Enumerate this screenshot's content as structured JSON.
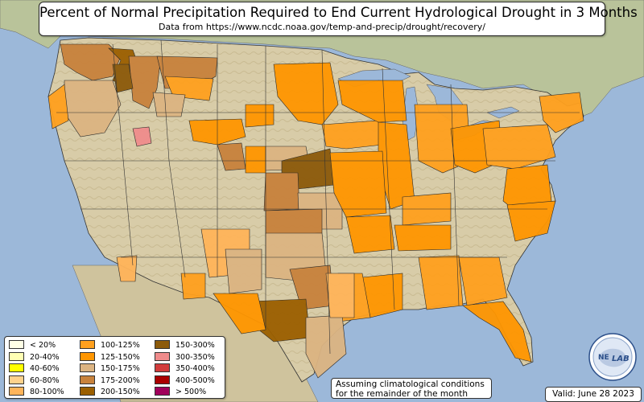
{
  "title": "Percent of Normal Precipitation Required to End Current Hydrological Drought in 3 Months",
  "subtitle": "Data from https://www.ncdc.noaa.gov/temp-and-precip/drought/recovery/",
  "legend": {
    "items": [
      {
        "label": "< 20%",
        "color": "#ffffe6"
      },
      {
        "label": "20-40%",
        "color": "#ffffb4"
      },
      {
        "label": "40-60%",
        "color": "#ffff00"
      },
      {
        "label": "60-80%",
        "color": "#ffd28c"
      },
      {
        "label": "80-100%",
        "color": "#ffb45a"
      },
      {
        "label": "100-125%",
        "color": "#ffa01e"
      },
      {
        "label": "125-150%",
        "color": "#ff9600"
      },
      {
        "label": "150-175%",
        "color": "#dcb482"
      },
      {
        "label": "175-200%",
        "color": "#c8823c"
      },
      {
        "label": "200-150%",
        "color": "#9b5f00"
      },
      {
        "label": "150-300%",
        "color": "#8c5a0a"
      },
      {
        "label": "300-350%",
        "color": "#f08c8c"
      },
      {
        "label": "350-400%",
        "color": "#d23c3c"
      },
      {
        "label": "400-500%",
        "color": "#aa0000"
      },
      {
        "label": "> 500%",
        "color": "#a0005a"
      }
    ]
  },
  "note": {
    "line1": "Assuming climatological conditions",
    "line2": "for the remainder of the month"
  },
  "valid_label": "Valid: June 28 2023",
  "logo": {
    "text_left": "NE",
    "text_right": "LAB"
  },
  "colors": {
    "water": "#9cb8d9",
    "land": "#d9cfb0",
    "land_shade": "#b8c89a"
  }
}
